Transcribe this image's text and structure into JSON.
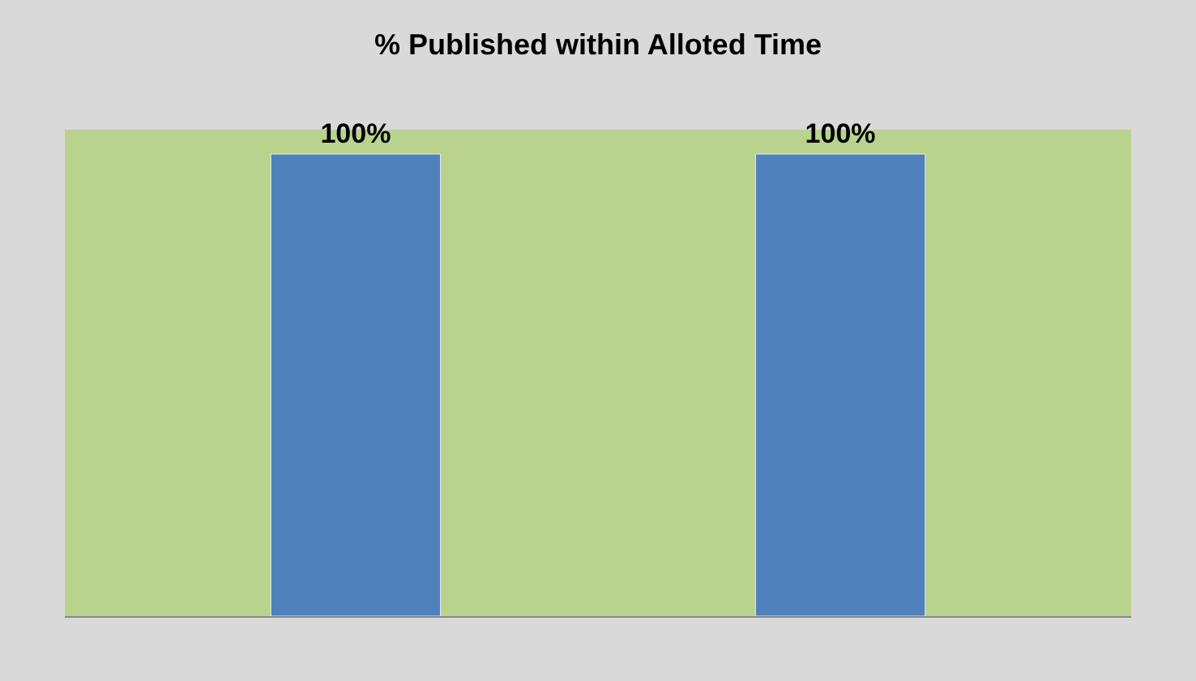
{
  "chart_data": {
    "type": "bar",
    "title": "% Published within Alloted Time",
    "categories": [
      null,
      null
    ],
    "values": [
      100,
      100
    ],
    "value_labels": [
      "100%",
      "100%"
    ],
    "color": "#4f81bd",
    "grid": false
  }
}
